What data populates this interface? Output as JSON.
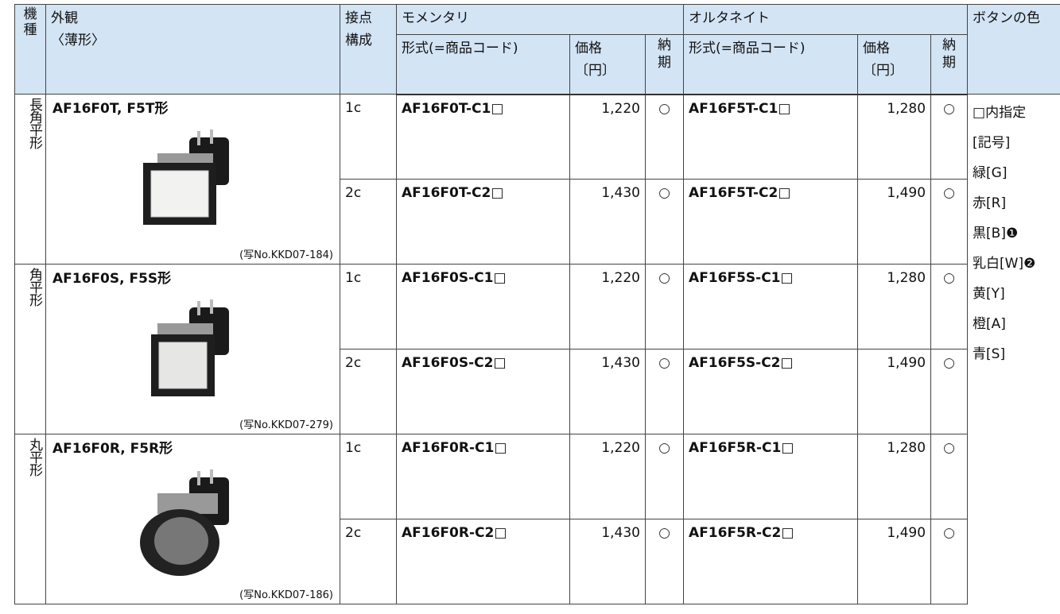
{
  "header": {
    "model_type": "機種",
    "appearance": [
      "外観",
      "〈薄形〉"
    ],
    "contact": [
      "接点",
      "構成"
    ],
    "momentary": "モメンタリ",
    "alternate": "オルタネイト",
    "color": "ボタンの色",
    "sub": {
      "code": "形式(=商品コード)",
      "price": "価格",
      "price_unit": "〔円〕",
      "delivery": "納期"
    }
  },
  "groups": [
    {
      "kind": "長角平形",
      "title": "AF16F0T, F5T形",
      "photo": "(写No.KKD07-184)",
      "rows": [
        {
          "contact": "1c",
          "m_code": "AF16F0T-C1□",
          "m_price": "1,220",
          "m_delivery": "○",
          "a_code": "AF16F5T-C1□",
          "a_price": "1,280",
          "a_delivery": "○"
        },
        {
          "contact": "2c",
          "m_code": "AF16F0T-C2□",
          "m_price": "1,430",
          "m_delivery": "○",
          "a_code": "AF16F5T-C2□",
          "a_price": "1,490",
          "a_delivery": "○"
        }
      ]
    },
    {
      "kind": "角平形",
      "title": "AF16F0S, F5S形",
      "photo": "(写No.KKD07-279)",
      "rows": [
        {
          "contact": "1c",
          "m_code": "AF16F0S-C1□",
          "m_price": "1,220",
          "m_delivery": "○",
          "a_code": "AF16F5S-C1□",
          "a_price": "1,280",
          "a_delivery": "○"
        },
        {
          "contact": "2c",
          "m_code": "AF16F0S-C2□",
          "m_price": "1,430",
          "m_delivery": "○",
          "a_code": "AF16F5S-C2□",
          "a_price": "1,490",
          "a_delivery": "○"
        }
      ]
    },
    {
      "kind": "丸平形",
      "title": "AF16F0R, F5R形",
      "photo": "(写No.KKD07-186)",
      "rows": [
        {
          "contact": "1c",
          "m_code": "AF16F0R-C1□",
          "m_price": "1,220",
          "m_delivery": "○",
          "a_code": "AF16F5R-C1□",
          "a_price": "1,280",
          "a_delivery": "○"
        },
        {
          "contact": "2c",
          "m_code": "AF16F0R-C2□",
          "m_price": "1,430",
          "m_delivery": "○",
          "a_code": "AF16F5R-C2□",
          "a_price": "1,490",
          "a_delivery": "○"
        }
      ]
    }
  ],
  "colors": [
    "□内指定",
    "[記号]",
    "緑[G]",
    "赤[R]",
    "黒[B]❶",
    "乳白[W]❷",
    "黄[Y]",
    "橙[A]",
    "青[S]"
  ]
}
